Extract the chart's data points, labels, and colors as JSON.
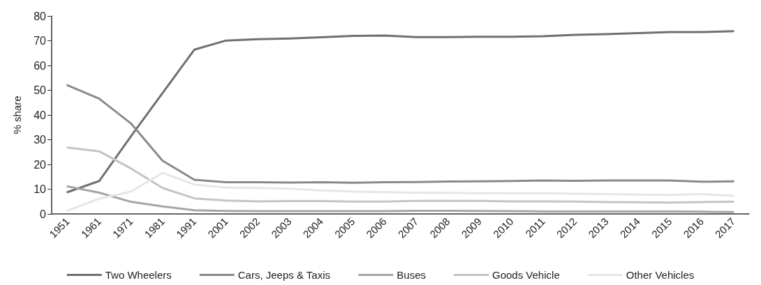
{
  "chart_data": {
    "type": "line",
    "ylabel": "% share",
    "categories": [
      "1951",
      "1961",
      "1971",
      "1981",
      "1991",
      "2001",
      "2002",
      "2003",
      "2004",
      "2005",
      "2006",
      "2007",
      "2008",
      "2009",
      "2010",
      "2011",
      "2012",
      "2013",
      "2014",
      "2015",
      "2016",
      "2017"
    ],
    "series": [
      {
        "name": "Two Wheelers",
        "color": "#707070",
        "values": [
          8.8,
          13.3,
          31.4,
          48.9,
          66.4,
          70.1,
          70.6,
          70.9,
          71.4,
          72.0,
          72.1,
          71.5,
          71.5,
          71.6,
          71.6,
          71.8,
          72.4,
          72.7,
          73.1,
          73.5,
          73.5,
          73.9
        ]
      },
      {
        "name": "Cars, Jeeps & Taxis",
        "color": "#8a8a8a",
        "values": [
          52.0,
          46.6,
          36.6,
          21.5,
          13.8,
          12.8,
          12.8,
          12.7,
          12.8,
          12.6,
          12.8,
          12.9,
          13.1,
          13.2,
          13.3,
          13.5,
          13.4,
          13.5,
          13.5,
          13.5,
          13.0,
          13.2
        ]
      },
      {
        "name": "Buses",
        "color": "#a6a6a6",
        "values": [
          11.1,
          8.6,
          4.9,
          3.0,
          1.5,
          1.2,
          1.1,
          1.1,
          1.1,
          1.1,
          1.1,
          1.3,
          1.3,
          1.2,
          1.1,
          1.0,
          1.0,
          1.0,
          1.0,
          1.0,
          0.9,
          0.8
        ]
      },
      {
        "name": "Goods Vehicle",
        "color": "#c4c4c4",
        "values": [
          26.8,
          25.3,
          18.4,
          10.5,
          6.3,
          5.4,
          5.1,
          5.2,
          5.2,
          5.0,
          5.0,
          5.3,
          5.3,
          5.3,
          5.1,
          5.1,
          5.0,
          4.8,
          4.7,
          4.6,
          4.8,
          4.9
        ]
      },
      {
        "name": "Other Vehicles",
        "color": "#e6e6e6",
        "values": [
          1.3,
          6.2,
          9.0,
          16.6,
          11.9,
          10.6,
          10.5,
          10.2,
          9.5,
          9.0,
          8.8,
          8.6,
          8.5,
          8.4,
          8.4,
          8.4,
          8.2,
          8.0,
          7.8,
          7.7,
          8.0,
          7.3
        ]
      }
    ],
    "ylim": [
      0,
      80
    ],
    "yticks": [
      0,
      10,
      20,
      30,
      40,
      50,
      60,
      70,
      80
    ],
    "grid": false,
    "legend": "bottom",
    "marker": "none",
    "line_style": "solid"
  }
}
